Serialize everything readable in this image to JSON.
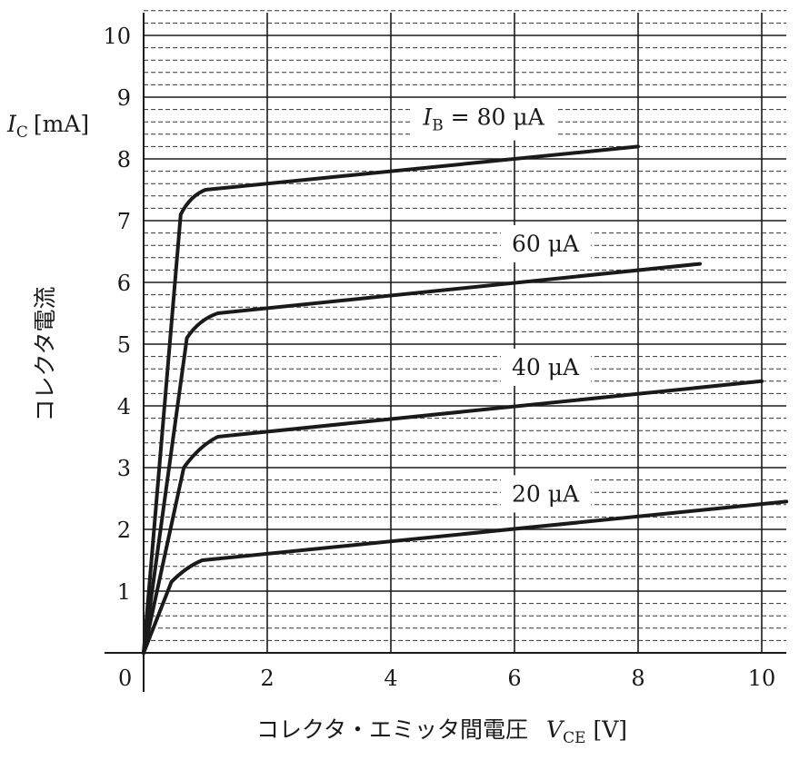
{
  "chart_data": {
    "type": "line",
    "title": "",
    "xlabel": {
      "text": "コレクタ・エミッタ間電圧",
      "symbol": "V",
      "subscript": "CE",
      "unit": "[V]"
    },
    "ylabel": {
      "text": "コレクタ電流",
      "symbol": "I",
      "subscript": "C",
      "unit": "[mA]"
    },
    "xlim": [
      0,
      10.4
    ],
    "ylim": [
      0,
      10.3
    ],
    "origin_label": "0",
    "x_ticks": [
      {
        "value": 2,
        "label": "2"
      },
      {
        "value": 4,
        "label": "4"
      },
      {
        "value": 6,
        "label": "6"
      },
      {
        "value": 8,
        "label": "8"
      },
      {
        "value": 10,
        "label": "10"
      }
    ],
    "y_ticks": [
      {
        "value": 1,
        "label": "1"
      },
      {
        "value": 2,
        "label": "2"
      },
      {
        "value": 3,
        "label": "3"
      },
      {
        "value": 4,
        "label": "4"
      },
      {
        "value": 5,
        "label": "5"
      },
      {
        "value": 6,
        "label": "6"
      },
      {
        "value": 7,
        "label": "7"
      },
      {
        "value": 8,
        "label": "8"
      },
      {
        "value": 9,
        "label": "9"
      },
      {
        "value": 10,
        "label": "10"
      }
    ],
    "grid": "major lines every 1 mA and 2 V, dashed minor lines every 0.2 mA",
    "minor_step_y": 0.2,
    "series": [
      {
        "name": "80 μA",
        "label_prefix": "I",
        "label_prefix_sub": "B",
        "label_eq": " = ",
        "label_value": "80 μA",
        "label_at": [
          5.5,
          8.55
        ],
        "points": [
          [
            0,
            0
          ],
          [
            0.6,
            7.1
          ],
          [
            0.75,
            7.4
          ],
          [
            1.0,
            7.5
          ],
          [
            8.0,
            8.2
          ]
        ]
      },
      {
        "name": "60 μA",
        "label_value": "60 μA",
        "label_at": [
          6.5,
          6.5
        ],
        "points": [
          [
            0,
            0
          ],
          [
            0.7,
            5.1
          ],
          [
            0.9,
            5.4
          ],
          [
            1.2,
            5.5
          ],
          [
            9.0,
            6.3
          ]
        ]
      },
      {
        "name": "40 μA",
        "label_value": "40 μA",
        "label_at": [
          6.5,
          4.5
        ],
        "points": [
          [
            0,
            0
          ],
          [
            0.65,
            3.0
          ],
          [
            0.9,
            3.35
          ],
          [
            1.2,
            3.5
          ],
          [
            10.0,
            4.4
          ]
        ]
      },
      {
        "name": "20 μA",
        "label_value": "20 μA",
        "label_at": [
          6.5,
          2.45
        ],
        "points": [
          [
            0,
            0
          ],
          [
            0.45,
            1.15
          ],
          [
            0.7,
            1.4
          ],
          [
            0.95,
            1.5
          ],
          [
            10.4,
            2.45
          ]
        ]
      }
    ]
  }
}
